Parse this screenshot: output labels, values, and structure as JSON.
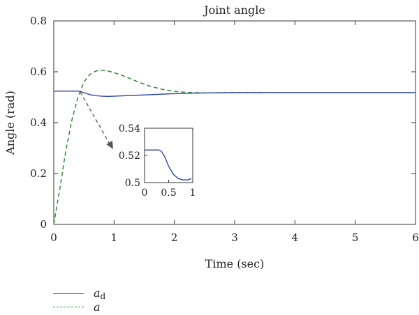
{
  "chart_data": {
    "type": "line",
    "title": "Joint angle",
    "xlabel": "Time (sec)",
    "ylabel": "Angle (rad)",
    "xlim": [
      0,
      6
    ],
    "ylim": [
      0,
      0.8
    ],
    "xticks": [
      "0",
      "1",
      "2",
      "3",
      "4",
      "5",
      "6"
    ],
    "yticks": [
      "0",
      "0.2",
      "0.4",
      "0.6",
      "0.8"
    ],
    "grid": false,
    "legend_position": "bottom-left",
    "series": [
      {
        "name": "a",
        "name_subscript": "d",
        "style": "solid",
        "color": "#3a4fa8",
        "x": [
          0,
          0.3,
          0.42,
          0.5,
          0.6,
          0.7,
          0.8,
          0.9,
          1.0,
          1.2,
          1.5,
          1.8,
          2.0,
          2.3,
          2.6,
          3.0,
          4.0,
          5.0,
          6.0
        ],
        "y": [
          0.524,
          0.524,
          0.524,
          0.518,
          0.51,
          0.506,
          0.504,
          0.503,
          0.504,
          0.506,
          0.509,
          0.512,
          0.514,
          0.516,
          0.517,
          0.518,
          0.518,
          0.518,
          0.518
        ]
      },
      {
        "name": "a",
        "name_subscript": "",
        "style": "dashed",
        "color": "#2e8b3a",
        "x": [
          0,
          0.1,
          0.2,
          0.3,
          0.4,
          0.5,
          0.6,
          0.7,
          0.8,
          0.9,
          1.0,
          1.2,
          1.4,
          1.6,
          1.8,
          2.0,
          2.2,
          2.5,
          3.0,
          3.5
        ],
        "y": [
          0,
          0.14,
          0.29,
          0.41,
          0.5,
          0.56,
          0.59,
          0.603,
          0.606,
          0.603,
          0.597,
          0.58,
          0.56,
          0.543,
          0.531,
          0.523,
          0.519,
          0.517,
          0.518,
          0.518
        ]
      }
    ],
    "annotation": "arrow from main curve at t≈0.45 to inset",
    "inset": {
      "xlim": [
        0,
        1
      ],
      "ylim": [
        0.5,
        0.54
      ],
      "xticks": [
        "0",
        "0.5",
        "1"
      ],
      "yticks": [
        "0.5",
        "0.52",
        "0.54"
      ],
      "series": [
        {
          "name": "a",
          "name_subscript": "d",
          "x": [
            0,
            0.3,
            0.35,
            0.42,
            0.5,
            0.6,
            0.7,
            0.8,
            0.9,
            0.97
          ],
          "y": [
            0.524,
            0.524,
            0.523,
            0.519,
            0.512,
            0.506,
            0.503,
            0.502,
            0.502,
            0.503
          ]
        }
      ]
    }
  },
  "legend": {
    "items": [
      {
        "label": "a",
        "subscript": "d",
        "style": "solid",
        "color": "#3a4fa8"
      },
      {
        "label": "a",
        "subscript": "",
        "style": "dashed",
        "color": "#2e8b3a"
      }
    ]
  }
}
